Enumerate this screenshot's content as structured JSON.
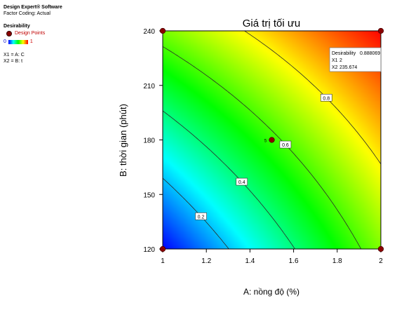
{
  "side_panel": {
    "software": "Design Expert® Software",
    "coding": "Factor Coding: Actual",
    "response": "Desirability",
    "design_points_label": "Design Points",
    "scale_min": "0",
    "scale_max": "1",
    "x1_assign": "X1 = A: C",
    "x2_assign": "X2 = B: t"
  },
  "chart_data": {
    "type": "contour",
    "title": "Giá trị tối ưu",
    "xlabel": "A: nồng độ (%)",
    "ylabel": "B: thời gian (phút)",
    "xlim": [
      1,
      2
    ],
    "ylim": [
      120,
      240
    ],
    "x_ticks": [
      "1",
      "1.2",
      "1.4",
      "1.6",
      "1.8",
      "2"
    ],
    "y_ticks": [
      "120",
      "150",
      "180",
      "210",
      "240"
    ],
    "colormap": [
      "#0000ff",
      "#00ffff",
      "#00ff00",
      "#ffff00",
      "#ff0000"
    ],
    "contours": [
      {
        "label": "0.2",
        "level": 0.2
      },
      {
        "label": "0.4",
        "level": 0.4
      },
      {
        "label": "0.6",
        "level": 0.6
      },
      {
        "label": "0.8",
        "level": 0.8
      }
    ],
    "design_points": [
      {
        "x": 1,
        "y": 120
      },
      {
        "x": 2,
        "y": 120
      },
      {
        "x": 1,
        "y": 240
      },
      {
        "x": 2,
        "y": 240
      },
      {
        "x": 1.5,
        "y": 180,
        "label": "5"
      }
    ],
    "tooltip": {
      "lines": [
        {
          "key": "Desirability",
          "value": "0.888069"
        },
        {
          "key": "X1",
          "value": "2"
        },
        {
          "key": "X2",
          "value": "235.674"
        }
      ]
    }
  },
  "colors": {
    "design_point": "#8b0000",
    "contour_line": "#2a2a2a",
    "axis": "#000000"
  }
}
